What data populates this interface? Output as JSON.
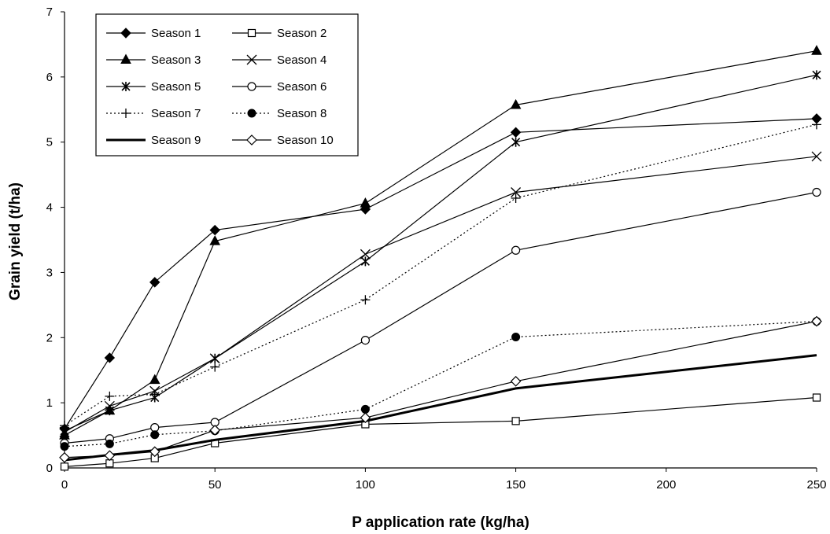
{
  "chart_data": {
    "type": "line",
    "xlabel": "P application rate (kg/ha)",
    "ylabel": "Grain yield (t/ha)",
    "xlim": [
      0,
      250
    ],
    "ylim": [
      0,
      7
    ],
    "xticks": [
      "0",
      "50",
      "100",
      "150",
      "200",
      "250"
    ],
    "yticks": [
      "0",
      "1",
      "2",
      "3",
      "4",
      "5",
      "6",
      "7"
    ],
    "grid": false,
    "legend_position": "top-left",
    "x": [
      0,
      15,
      30,
      50,
      100,
      150,
      250
    ],
    "series": [
      {
        "name": "Season 1",
        "marker": "diamond-filled",
        "line": "solid",
        "values": [
          0.6,
          1.69,
          2.85,
          3.65,
          3.97,
          5.15,
          5.36
        ]
      },
      {
        "name": "Season 2",
        "marker": "square-open",
        "line": "solid",
        "values": [
          0.02,
          0.07,
          0.15,
          0.38,
          0.67,
          0.72,
          1.08
        ]
      },
      {
        "name": "Season 3",
        "marker": "triangle-filled",
        "line": "solid",
        "values": [
          0.5,
          0.88,
          1.35,
          3.48,
          4.06,
          5.57,
          6.4
        ]
      },
      {
        "name": "Season 4",
        "marker": "x",
        "line": "solid",
        "values": [
          0.55,
          0.95,
          1.18,
          1.68,
          3.28,
          4.23,
          4.78
        ]
      },
      {
        "name": "Season 5",
        "marker": "star",
        "line": "solid",
        "values": [
          0.57,
          0.88,
          1.08,
          1.68,
          3.17,
          5.0,
          6.03
        ]
      },
      {
        "name": "Season 6",
        "marker": "circle-open",
        "line": "solid",
        "values": [
          0.38,
          0.45,
          0.62,
          0.7,
          1.96,
          3.34,
          4.23
        ]
      },
      {
        "name": "Season 7",
        "marker": "plus",
        "line": "dotted",
        "values": [
          0.65,
          1.1,
          1.13,
          1.55,
          2.58,
          4.14,
          5.27
        ]
      },
      {
        "name": "Season 8",
        "marker": "circle-filled",
        "line": "dotted",
        "values": [
          0.33,
          0.37,
          0.51,
          0.57,
          0.9,
          2.01,
          2.25
        ]
      },
      {
        "name": "Season 9",
        "marker": "none",
        "line": "thick",
        "values": [
          0.12,
          0.2,
          0.27,
          0.43,
          0.72,
          1.22,
          1.73
        ]
      },
      {
        "name": "Season 10",
        "marker": "diamond-open",
        "line": "solid",
        "values": [
          0.16,
          0.19,
          0.25,
          0.58,
          0.77,
          1.33,
          2.25
        ]
      }
    ]
  }
}
